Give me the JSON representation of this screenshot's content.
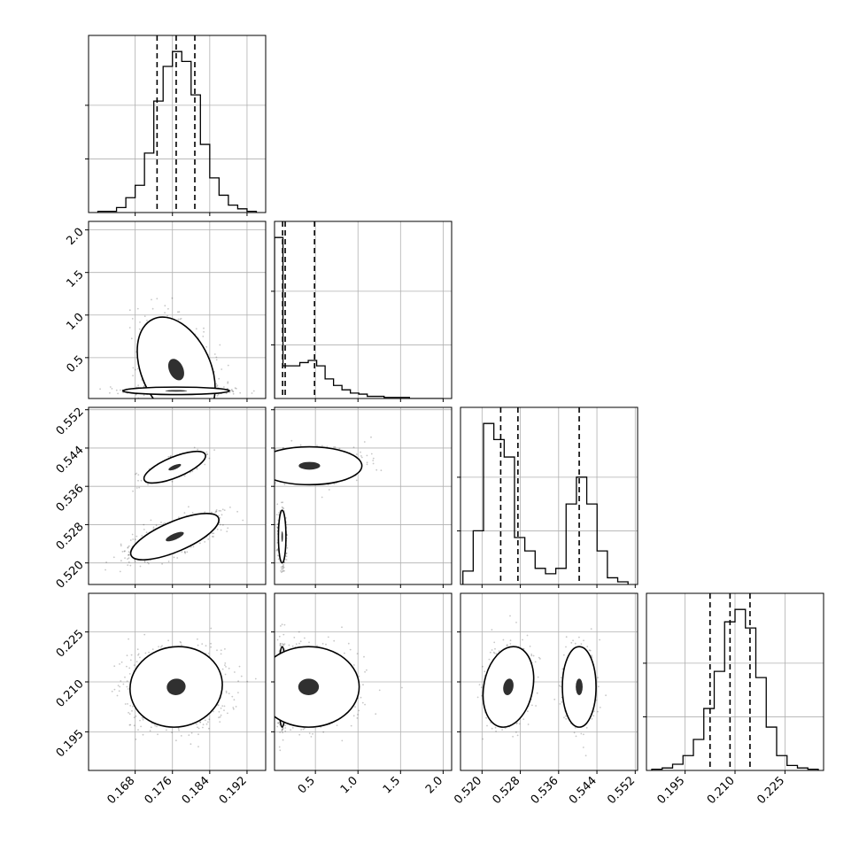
{
  "chart_data": {
    "type": "corner",
    "parameters": 4,
    "colors": {
      "ink": "#000000",
      "grid": "#b0b0b0"
    },
    "axes": [
      {
        "range": [
          0.158,
          0.196
        ],
        "ticks": [
          0.168,
          0.176,
          0.184,
          0.192
        ],
        "tick_labels": [
          "0.168",
          "0.176",
          "0.184",
          "0.192"
        ]
      },
      {
        "range": [
          0.02,
          2.1
        ],
        "ticks": [
          0.5,
          1.0,
          1.5,
          2.0
        ],
        "tick_labels": [
          "0.5",
          "1.0",
          "1.5",
          "2.0"
        ]
      },
      {
        "range": [
          0.5155,
          0.5525
        ],
        "ticks": [
          0.52,
          0.528,
          0.536,
          0.544,
          0.552
        ],
        "tick_labels": [
          "0.520",
          "0.528",
          "0.536",
          "0.544",
          "0.552"
        ]
      },
      {
        "range": [
          0.1834,
          0.2366
        ],
        "ticks": [
          0.195,
          0.21,
          0.225
        ],
        "tick_labels": [
          "0.195",
          "0.210",
          "0.225"
        ]
      }
    ],
    "histograms": [
      {
        "param": 0,
        "edges_range": [
          0.16,
          0.194
        ],
        "counts": [
          1,
          1,
          4,
          12,
          22,
          48,
          90,
          118,
          130,
          122,
          95,
          55,
          28,
          14,
          6,
          3,
          1
        ],
        "quantiles": [
          0.1727,
          0.1768,
          0.1808
        ]
      },
      {
        "param": 1,
        "edges_range": [
          0.02,
          2.0
        ],
        "counts": [
          148,
          30,
          30,
          33,
          35,
          30,
          18,
          12,
          8,
          5,
          4,
          2,
          2,
          1,
          1,
          1,
          0,
          0,
          0,
          0
        ],
        "quantiles": [
          0.115,
          0.145,
          0.49
        ]
      },
      {
        "param": 2,
        "edges_range": [
          0.516,
          0.5505
        ],
        "counts": [
          10,
          40,
          120,
          108,
          95,
          35,
          25,
          12,
          8,
          12,
          60,
          80,
          60,
          25,
          5,
          2
        ],
        "quantiles": [
          0.5239,
          0.5275,
          0.5403
        ]
      },
      {
        "param": 3,
        "edges_range": [
          0.185,
          0.235
        ],
        "counts": [
          1,
          2,
          5,
          12,
          25,
          50,
          80,
          120,
          130,
          115,
          75,
          35,
          12,
          4,
          2,
          1
        ],
        "quantiles": [
          0.2025,
          0.2085,
          0.2145
        ]
      }
    ],
    "pairs": [
      {
        "x": 0,
        "y": 1,
        "clusters": [
          {
            "mx": 0.1768,
            "my": 0.36,
            "sx": 0.0038,
            "sy": 0.28,
            "rho": -0.35,
            "n": 900
          },
          {
            "mx": 0.1768,
            "my": 0.11,
            "sx": 0.0052,
            "sy": 0.02,
            "rho": 0,
            "n": 900
          }
        ]
      },
      {
        "x": 0,
        "y": 2,
        "clusters": [
          {
            "mx": 0.1765,
            "my": 0.5255,
            "sx": 0.0043,
            "sy": 0.0022,
            "rho": 0.72,
            "n": 1100
          },
          {
            "mx": 0.1765,
            "my": 0.54,
            "sx": 0.003,
            "sy": 0.0015,
            "rho": 0.72,
            "n": 600
          }
        ]
      },
      {
        "x": 0,
        "y": 3,
        "clusters": [
          {
            "mx": 0.1768,
            "my": 0.2085,
            "sx": 0.0045,
            "sy": 0.0055,
            "rho": 0.05,
            "n": 1600
          }
        ]
      },
      {
        "x": 1,
        "y": 2,
        "clusters": [
          {
            "mx": 0.43,
            "my": 0.5403,
            "sx": 0.28,
            "sy": 0.0018,
            "rho": 0,
            "n": 800
          },
          {
            "mx": 0.11,
            "my": 0.5255,
            "sx": 0.02,
            "sy": 0.0025,
            "rho": 0,
            "n": 900
          }
        ]
      },
      {
        "x": 1,
        "y": 3,
        "clusters": [
          {
            "mx": 0.11,
            "my": 0.2085,
            "sx": 0.02,
            "sy": 0.0055,
            "rho": 0,
            "n": 900
          },
          {
            "mx": 0.42,
            "my": 0.2085,
            "sx": 0.27,
            "sy": 0.0055,
            "rho": 0,
            "n": 800
          }
        ]
      },
      {
        "x": 2,
        "y": 3,
        "clusters": [
          {
            "mx": 0.5255,
            "my": 0.2085,
            "sx": 0.0024,
            "sy": 0.0055,
            "rho": 0.2,
            "n": 1000
          },
          {
            "mx": 0.5403,
            "my": 0.2085,
            "sx": 0.0016,
            "sy": 0.0055,
            "rho": 0,
            "n": 600
          }
        ]
      }
    ],
    "contour_levels": [
      0.5,
      1.0,
      1.5
    ],
    "grid": true,
    "title": "",
    "legend": "none"
  }
}
